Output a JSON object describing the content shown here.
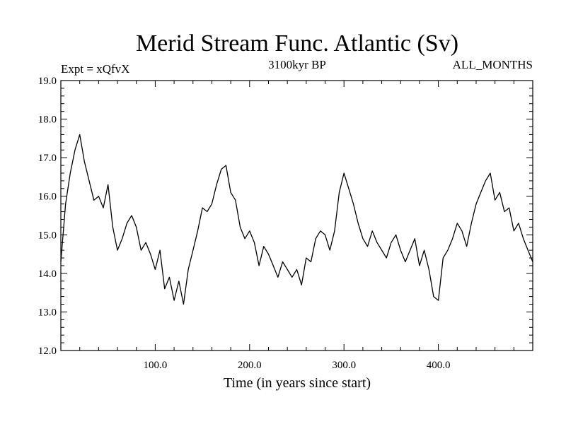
{
  "chart_data": {
    "type": "line",
    "title": "Merid Stream Func. Atlantic (Sv)",
    "subtitle_left": "Expt = xQfvX",
    "subtitle_center": "3100kyr BP",
    "subtitle_right": "ALL_MONTHS",
    "xlabel": "Time (in years since start)",
    "ylabel": "",
    "xlim": [
      0,
      500
    ],
    "ylim": [
      12.0,
      19.0
    ],
    "x_ticks": [
      100,
      200,
      300,
      400
    ],
    "x_tick_labels": [
      "100.0",
      "200.0",
      "300.0",
      "400.0"
    ],
    "y_ticks": [
      12,
      13,
      14,
      15,
      16,
      17,
      18,
      19
    ],
    "y_tick_labels": [
      "12.0",
      "13.0",
      "14.0",
      "15.0",
      "16.0",
      "17.0",
      "18.0",
      "19.0"
    ],
    "grid": false,
    "series": [
      {
        "name": "Merid Stream Func. Atlantic",
        "color": "#000000",
        "x": [
          0,
          5,
          10,
          15,
          20,
          25,
          30,
          35,
          40,
          45,
          50,
          55,
          60,
          65,
          70,
          75,
          80,
          85,
          90,
          95,
          100,
          105,
          110,
          115,
          120,
          125,
          130,
          135,
          140,
          145,
          150,
          155,
          160,
          165,
          170,
          175,
          180,
          185,
          190,
          195,
          200,
          205,
          210,
          215,
          220,
          225,
          230,
          235,
          240,
          245,
          250,
          255,
          260,
          265,
          270,
          275,
          280,
          285,
          290,
          295,
          300,
          305,
          310,
          315,
          320,
          325,
          330,
          335,
          340,
          345,
          350,
          355,
          360,
          365,
          370,
          375,
          380,
          385,
          390,
          395,
          400,
          405,
          410,
          415,
          420,
          425,
          430,
          435,
          440,
          445,
          450,
          455,
          460,
          465,
          470,
          475,
          480,
          485,
          490,
          495,
          500
        ],
        "values": [
          14.3,
          15.8,
          16.6,
          17.2,
          17.6,
          16.9,
          16.4,
          15.9,
          16.0,
          15.7,
          16.3,
          15.2,
          14.6,
          14.9,
          15.3,
          15.5,
          15.2,
          14.6,
          14.8,
          14.5,
          14.1,
          14.6,
          13.6,
          13.9,
          13.3,
          13.8,
          13.2,
          14.1,
          14.6,
          15.1,
          15.7,
          15.6,
          15.8,
          16.3,
          16.7,
          16.8,
          16.1,
          15.9,
          15.2,
          14.9,
          15.1,
          14.8,
          14.2,
          14.7,
          14.5,
          14.2,
          13.9,
          14.3,
          14.1,
          13.9,
          14.1,
          13.7,
          14.4,
          14.3,
          14.9,
          15.1,
          15.0,
          14.6,
          15.1,
          16.1,
          16.6,
          16.2,
          15.8,
          15.3,
          14.9,
          14.7,
          15.1,
          14.8,
          14.6,
          14.4,
          14.8,
          15.0,
          14.6,
          14.3,
          14.6,
          14.9,
          14.2,
          14.6,
          14.1,
          13.4,
          13.3,
          14.4,
          14.6,
          14.9,
          15.3,
          15.1,
          14.7,
          15.3,
          15.8,
          16.1,
          16.4,
          16.6,
          15.9,
          16.1,
          15.6,
          15.7,
          15.1,
          15.3,
          14.9,
          14.6,
          14.3
        ]
      }
    ]
  }
}
